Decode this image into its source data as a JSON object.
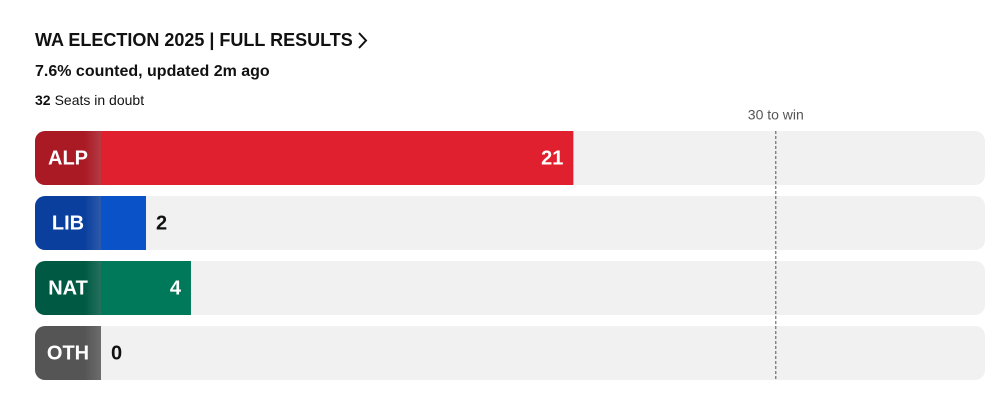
{
  "chart_data": {
    "type": "bar",
    "orientation": "horizontal",
    "title": "WA ELECTION 2025 | FULL RESULTS",
    "subtitle": "7.6% counted, updated 2m ago",
    "seats_in_doubt": {
      "value": 32,
      "label": "Seats in doubt"
    },
    "threshold": {
      "value": 30,
      "label": "30 to win"
    },
    "categories": [
      "ALP",
      "LIB",
      "NAT",
      "OTH"
    ],
    "values": [
      21,
      2,
      4,
      0
    ],
    "colors": [
      "#e0202e",
      "#0a52c8",
      "#00785a",
      "#6b6b6b"
    ],
    "label_colors": [
      "#a91a25",
      "#0a3f9e",
      "#005a43",
      "#555555"
    ],
    "xlim": [
      0,
      39.3
    ]
  }
}
